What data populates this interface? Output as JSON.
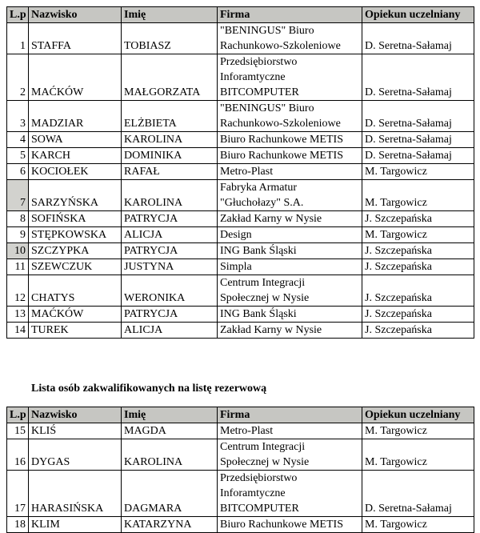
{
  "columns": [
    {
      "key": "lp",
      "label": "L.p"
    },
    {
      "key": "nazwisko",
      "label": "Nazwisko"
    },
    {
      "key": "imie",
      "label": "Imię"
    },
    {
      "key": "firma",
      "label": "Firma"
    },
    {
      "key": "opiekun",
      "label": "Opiekun uczelniany"
    }
  ],
  "colors": {
    "header_bg": "#c6c6c2",
    "lp_highlight_bg": "#d2d2ce",
    "border": "#000000"
  },
  "reserve_title": "Lista osób zakwalifikowanych na listę rezerwową",
  "qualified_table": {
    "rows": [
      {
        "lp": "1",
        "nazwisko": "STAFFA",
        "imie": "TOBIASZ",
        "firma": "\"BENINGUS\" Biuro\nRachunkowo-Szkoleniowe",
        "opiekun": "D. Seretna-Sałamaj",
        "lp_highlight": false
      },
      {
        "lp": "2",
        "nazwisko": "MAĆKÓW",
        "imie": "MAŁGORZATA",
        "firma": "Przedsiębiorstwo\nInforamtyczne\nBITCOMPUTER",
        "opiekun": "D. Seretna-Sałamaj",
        "lp_highlight": false
      },
      {
        "lp": "3",
        "nazwisko": "MADZIAR",
        "imie": "ELŻBIETA",
        "firma": "\"BENINGUS\" Biuro\nRachunkowo-Szkoleniowe",
        "opiekun": "D. Seretna-Sałamaj",
        "lp_highlight": false
      },
      {
        "lp": "4",
        "nazwisko": "SOWA",
        "imie": "KAROLINA",
        "firma": "Biuro Rachunkowe METIS",
        "opiekun": "D. Seretna-Sałamaj",
        "lp_highlight": false
      },
      {
        "lp": "5",
        "nazwisko": "KARCH",
        "imie": "DOMINIKA",
        "firma": "Biuro Rachunkowe METIS",
        "opiekun": "D. Seretna-Sałamaj",
        "lp_highlight": false
      },
      {
        "lp": "6",
        "nazwisko": "KOCIOŁEK",
        "imie": "RAFAŁ",
        "firma": "Metro-Plast",
        "opiekun": "M. Targowicz",
        "lp_highlight": false
      },
      {
        "lp": "7",
        "nazwisko": "SARZYŃSKA",
        "imie": "KAROLINA",
        "firma": "Fabryka Armatur\n\"Głuchołazy\" S.A.",
        "opiekun": "M. Targowicz",
        "lp_highlight": true
      },
      {
        "lp": "8",
        "nazwisko": "SOFIŃSKA",
        "imie": "PATRYCJA",
        "firma": "Zakład Karny w Nysie",
        "opiekun": "J. Szczepańska",
        "lp_highlight": false
      },
      {
        "lp": "9",
        "nazwisko": "STĘPKOWSKA",
        "imie": "ALICJA",
        "firma": "Design",
        "opiekun": "M. Targowicz",
        "lp_highlight": false
      },
      {
        "lp": "10",
        "nazwisko": "SZCZYPKA",
        "imie": "PATRYCJA",
        "firma": "ING Bank Śląski",
        "opiekun": "J. Szczepańska",
        "lp_highlight": true
      },
      {
        "lp": "11",
        "nazwisko": "SZEWCZUK",
        "imie": "JUSTYNA",
        "firma": "Simpla",
        "opiekun": "J. Szczepańska",
        "lp_highlight": false
      },
      {
        "lp": "12",
        "nazwisko": "CHATYS",
        "imie": "WERONIKA",
        "firma": "Centrum Integracji\nSpołecznej w Nysie",
        "opiekun": "J. Szczepańska",
        "lp_highlight": false
      },
      {
        "lp": "13",
        "nazwisko": "MAĆKÓW",
        "imie": "PATRYCJA",
        "firma": "ING Bank Śląski",
        "opiekun": "J. Szczepańska",
        "lp_highlight": false
      },
      {
        "lp": "14",
        "nazwisko": "TUREK",
        "imie": "ALICJA",
        "firma": "Zakład Karny w Nysie",
        "opiekun": "J. Szczepańska",
        "lp_highlight": false
      }
    ]
  },
  "reserve_table": {
    "rows": [
      {
        "lp": "15",
        "nazwisko": "KLIŚ",
        "imie": "MAGDA",
        "firma": "Metro-Plast",
        "opiekun": "M. Targowicz",
        "lp_highlight": false
      },
      {
        "lp": "16",
        "nazwisko": "DYGAS",
        "imie": "KAROLINA",
        "firma": "Centrum Integracji\nSpołecznej w Nysie",
        "opiekun": "M. Targowicz",
        "lp_highlight": false
      },
      {
        "lp": "17",
        "nazwisko": "HARASIŃSKA",
        "imie": "DAGMARA",
        "firma": "Przedsiębiorstwo\nInforamtyczne\nBITCOMPUTER",
        "opiekun": "D. Seretna-Sałamaj",
        "lp_highlight": false
      },
      {
        "lp": "18",
        "nazwisko": "KLIM",
        "imie": "KATARZYNA",
        "firma": "Biuro Rachunkowe METIS",
        "opiekun": "M. Targowicz",
        "lp_highlight": false
      }
    ]
  }
}
